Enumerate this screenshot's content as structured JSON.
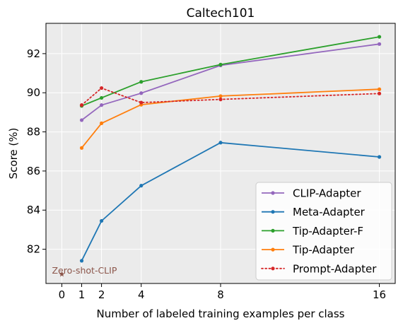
{
  "chart_data": {
    "type": "line",
    "title": "Caltech101",
    "xlabel": "Number of labeled training examples per class",
    "ylabel": "Score (%)",
    "xlim": [
      -0.8,
      16.8
    ],
    "ylim": [
      80.25,
      93.55
    ],
    "x_ticks": [
      0,
      1,
      2,
      4,
      8,
      16
    ],
    "y_ticks": [
      82,
      84,
      86,
      88,
      90,
      92
    ],
    "grid": true,
    "legend_position": "bottom-right",
    "x": [
      1,
      2,
      4,
      8,
      16
    ],
    "series": [
      {
        "name": "CLIP-Adapter",
        "color": "#9467bd",
        "style": "solid",
        "marker": "circle",
        "values": [
          88.6,
          89.37,
          89.98,
          91.4,
          92.49
        ]
      },
      {
        "name": "Meta-Adapter",
        "color": "#1f77b4",
        "style": "solid",
        "marker": "circle",
        "values": [
          81.41,
          83.45,
          85.25,
          87.45,
          86.72
        ]
      },
      {
        "name": "Tip-Adapter-F",
        "color": "#2ca02c",
        "style": "solid",
        "marker": "circle",
        "values": [
          89.33,
          89.74,
          90.56,
          91.44,
          92.86
        ]
      },
      {
        "name": "Tip-Adapter",
        "color": "#ff7f0e",
        "style": "solid",
        "marker": "circle",
        "values": [
          87.18,
          88.44,
          89.39,
          89.83,
          90.18
        ]
      },
      {
        "name": "Prompt-Adapter",
        "color": "#d62728",
        "style": "dotted",
        "marker": "circle",
        "values": [
          89.37,
          90.24,
          89.5,
          89.66,
          89.96
        ]
      }
    ],
    "annotation": {
      "text": "Zero-shot-CLIP",
      "x": 0,
      "y": 80.72,
      "color": "#8c564b",
      "marker": "star"
    }
  }
}
